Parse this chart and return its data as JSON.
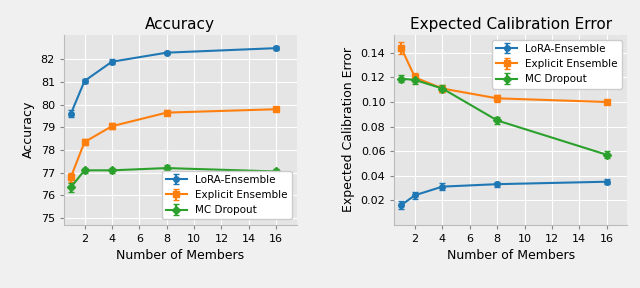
{
  "x": [
    1,
    2,
    4,
    8,
    16
  ],
  "acc_lora": [
    79.6,
    81.05,
    81.9,
    82.3,
    82.5
  ],
  "acc_lora_err": [
    0.15,
    0.1,
    0.1,
    0.08,
    0.08
  ],
  "acc_explicit": [
    76.8,
    78.35,
    79.05,
    79.65,
    79.8
  ],
  "acc_explicit_err": [
    0.2,
    0.15,
    0.12,
    0.1,
    0.1
  ],
  "acc_mc": [
    76.35,
    77.1,
    77.1,
    77.2,
    77.05
  ],
  "acc_mc_err": [
    0.2,
    0.12,
    0.1,
    0.15,
    0.12
  ],
  "ece_lora": [
    0.016,
    0.024,
    0.031,
    0.033,
    0.035
  ],
  "ece_lora_err": [
    0.003,
    0.003,
    0.003,
    0.002,
    0.002
  ],
  "ece_explicit": [
    0.144,
    0.12,
    0.111,
    0.103,
    0.1
  ],
  "ece_explicit_err": [
    0.005,
    0.004,
    0.003,
    0.003,
    0.002
  ],
  "ece_mc": [
    0.119,
    0.118,
    0.111,
    0.085,
    0.057
  ],
  "ece_mc_err": [
    0.003,
    0.003,
    0.003,
    0.003,
    0.003
  ],
  "color_lora": "#1f77b4",
  "color_explicit": "#ff7f0e",
  "color_mc": "#2ca02c",
  "title_acc": "Accuracy",
  "title_ece": "Expected Calibration Error",
  "xlabel": "Number of Members",
  "ylabel_acc": "Accuracy",
  "ylabel_ece": "Expected Calibration Error",
  "xtick_vals": [
    2,
    4,
    6,
    8,
    10,
    12,
    14,
    16
  ],
  "acc_yticks": [
    75,
    76,
    77,
    78,
    79,
    80,
    81,
    82
  ],
  "ece_yticks": [
    0.02,
    0.04,
    0.06,
    0.08,
    0.1,
    0.12,
    0.14
  ],
  "legend_lora": "LoRA-Ensemble",
  "legend_explicit": "Explicit Ensemble",
  "legend_mc": "MC Dropout",
  "bg_color": "#e5e5e5",
  "grid_color": "#ffffff",
  "acc_ylim": [
    74.7,
    83.1
  ],
  "ece_ylim": [
    0.0,
    0.155
  ],
  "xlim": [
    0.5,
    17.5
  ]
}
